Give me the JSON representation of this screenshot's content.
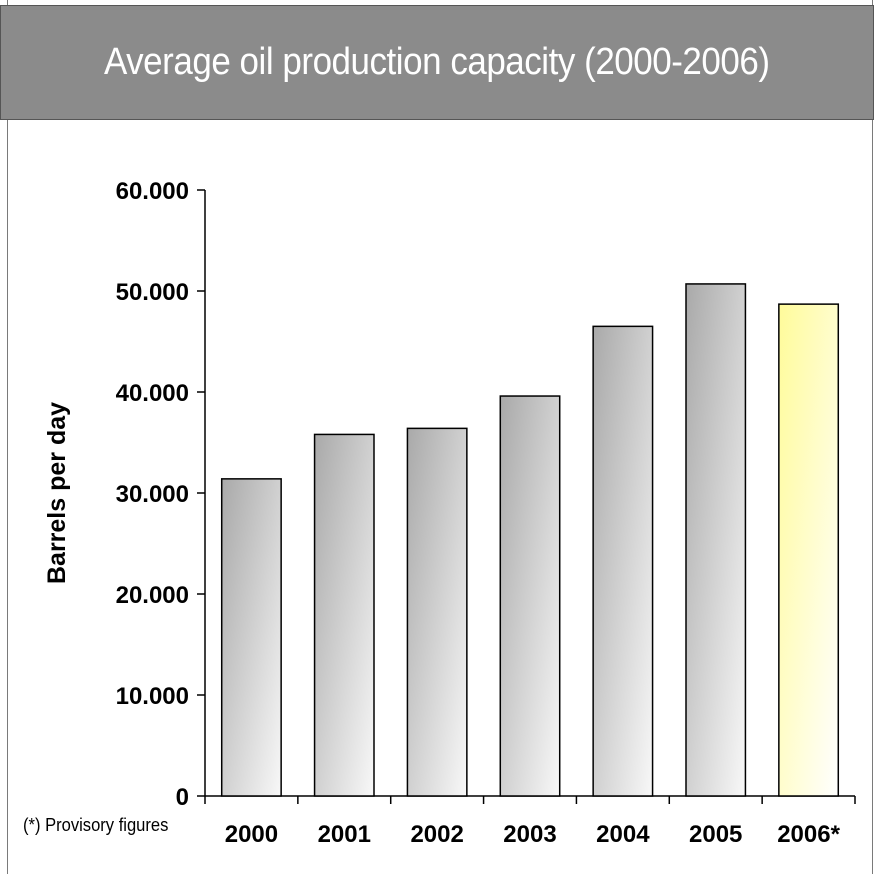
{
  "title": "Average oil production capacity (2000-2006)",
  "footnote": "(*) Provisory figures",
  "colors": {
    "header_bg": "#8b8b8b",
    "bar_dark": "#a9a9a9",
    "bar_light": "#f8f8f8",
    "highlight_dark": "#fffb9a",
    "highlight_light": "#ffffff"
  },
  "chart_data": {
    "type": "bar",
    "title": "Average oil production capacity (2000-2006)",
    "xlabel": "",
    "ylabel": "Barrels per day",
    "categories": [
      "2000",
      "2001",
      "2002",
      "2003",
      "2004",
      "2005",
      "2006*"
    ],
    "values": [
      31400,
      35800,
      36400,
      39600,
      46500,
      50700,
      48700
    ],
    "highlighted_category": "2006*",
    "ylim": [
      0,
      60000
    ],
    "yticks": [
      0,
      10000,
      20000,
      30000,
      40000,
      50000,
      60000
    ],
    "ytick_labels": [
      "0",
      "10.000",
      "20.000",
      "30.000",
      "40.000",
      "50.000",
      "60.000"
    ],
    "grid": false,
    "legend": "none"
  }
}
